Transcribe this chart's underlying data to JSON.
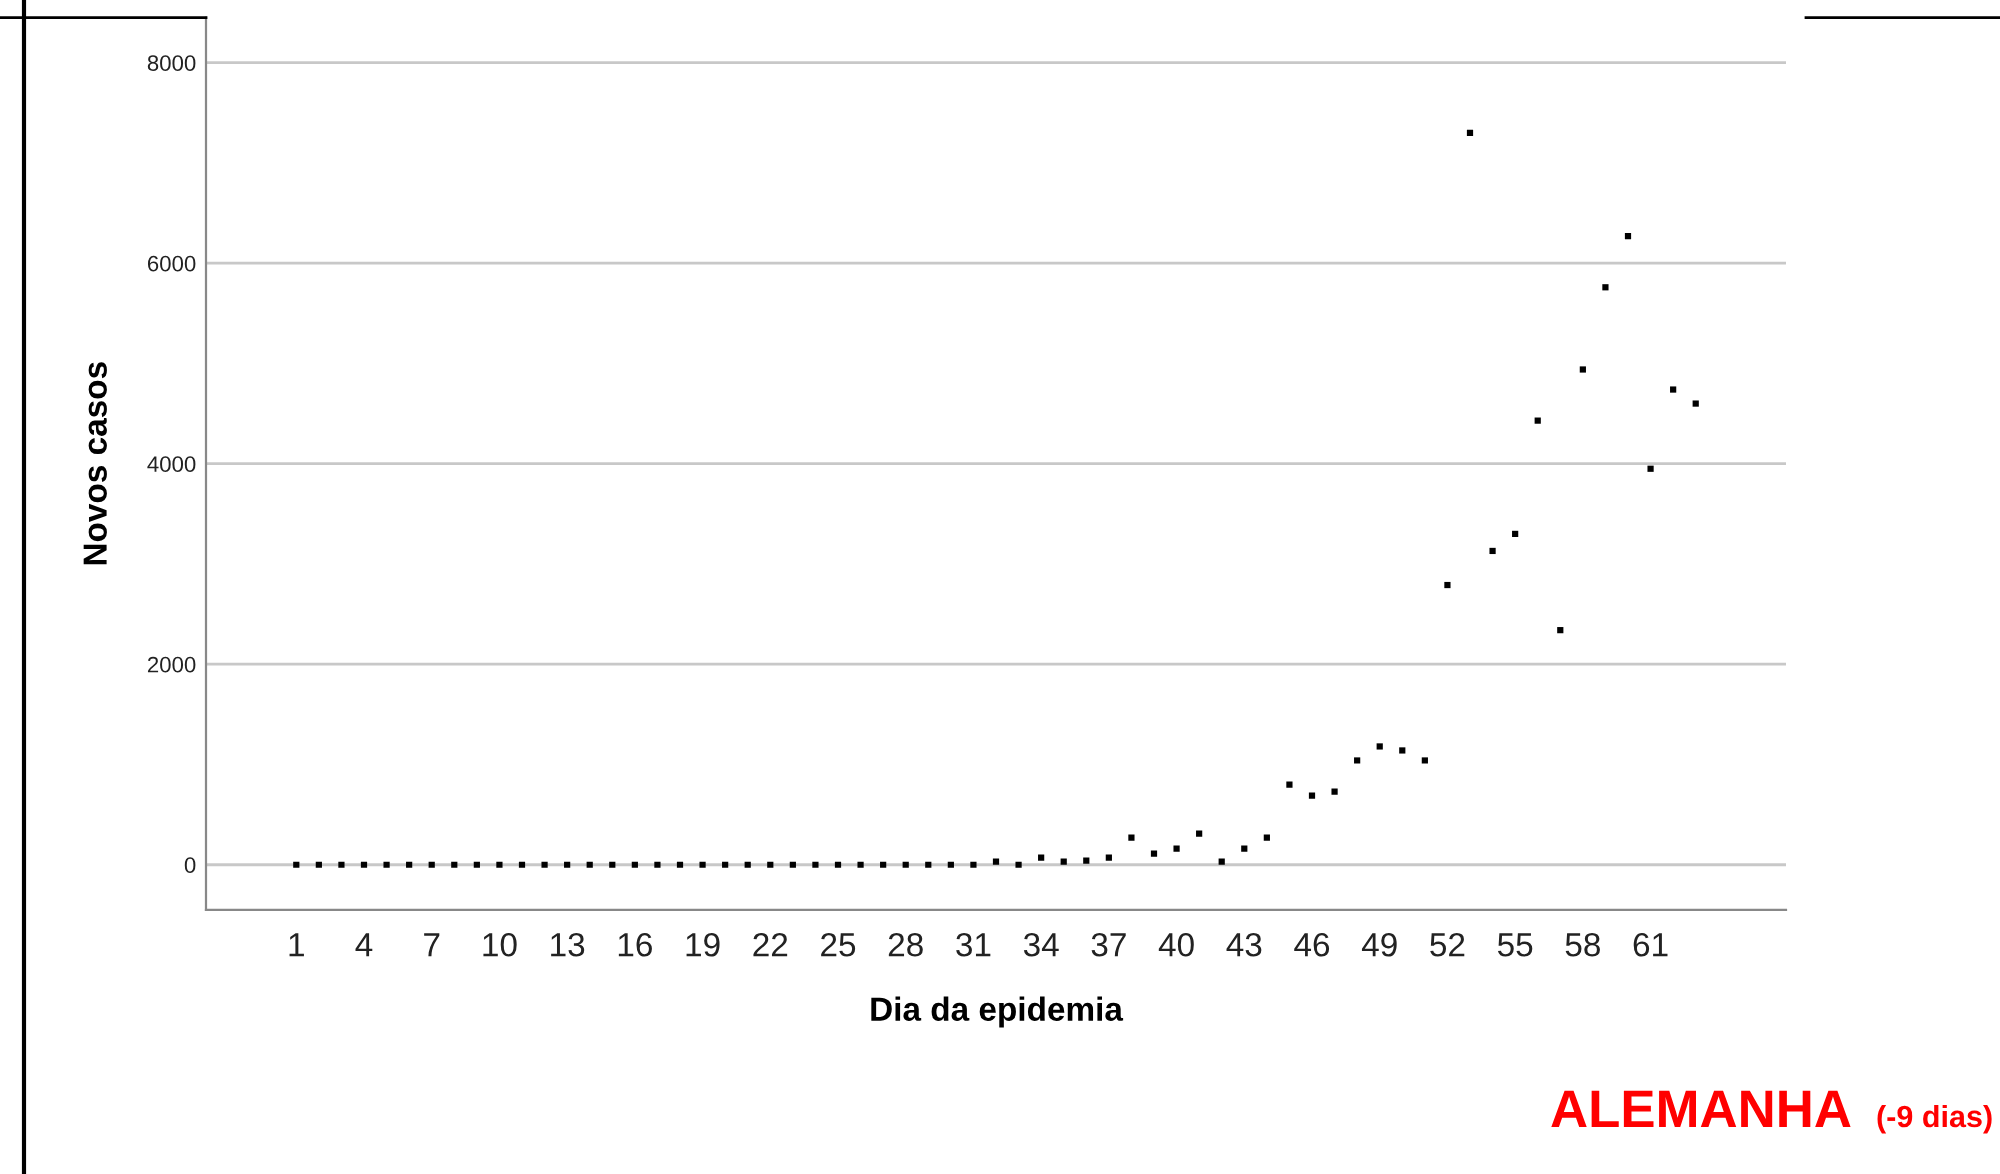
{
  "chart_data": {
    "type": "scatter",
    "xlabel": "Dia da epidemia",
    "ylabel": "Novos casos",
    "x": [
      1,
      2,
      3,
      4,
      5,
      6,
      7,
      8,
      9,
      10,
      11,
      12,
      13,
      14,
      15,
      16,
      17,
      18,
      19,
      20,
      21,
      22,
      23,
      24,
      25,
      26,
      27,
      28,
      29,
      30,
      31,
      32,
      33,
      34,
      35,
      36,
      37,
      38,
      39,
      40,
      41,
      42,
      43,
      44,
      45,
      46,
      47,
      48,
      49,
      50,
      51,
      52,
      53,
      54,
      55,
      56,
      57,
      58,
      59,
      60,
      61,
      62,
      63
    ],
    "values": [
      0,
      0,
      0,
      0,
      0,
      0,
      0,
      0,
      0,
      0,
      0,
      0,
      0,
      0,
      0,
      0,
      0,
      0,
      0,
      0,
      0,
      0,
      0,
      0,
      0,
      0,
      0,
      0,
      0,
      0,
      0,
      30,
      0,
      70,
      30,
      40,
      70,
      270,
      110,
      160,
      310,
      30,
      160,
      270,
      800,
      690,
      730,
      1040,
      1180,
      1140,
      1040,
      2790,
      7300,
      3130,
      3300,
      4430,
      2340,
      4940,
      5760,
      6270,
      3950,
      4740,
      4600
    ],
    "color": "#000000",
    "marker": "square",
    "grid": "y",
    "xlim": [
      -3,
      67
    ],
    "xticks": [
      1,
      4,
      7,
      10,
      13,
      16,
      19,
      22,
      25,
      28,
      31,
      34,
      37,
      40,
      43,
      46,
      49,
      52,
      55,
      58,
      61
    ],
    "ylim": [
      -450,
      8450
    ],
    "yticks": [
      0,
      2000,
      4000,
      6000,
      8000
    ],
    "annotations": [
      "ALEMANHA",
      "(-9 dias)"
    ]
  }
}
